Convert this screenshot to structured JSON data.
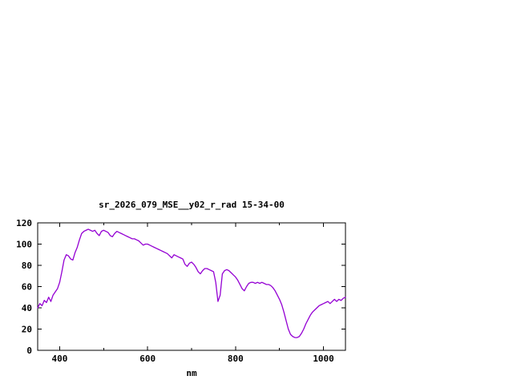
{
  "page": {
    "background": "#ffffff"
  },
  "chart_data": {
    "type": "line",
    "title": "sr_2026_079_MSE__y02_r_rad 15-34-00",
    "xlabel": "nm",
    "ylabel": "",
    "xlim": [
      350,
      1050
    ],
    "ylim": [
      0,
      120
    ],
    "xticks": [
      400,
      600,
      800,
      1000
    ],
    "xminor": [
      500,
      700,
      900
    ],
    "yticks": [
      0,
      20,
      40,
      60,
      80,
      100,
      120
    ],
    "grid": false,
    "legend": "none",
    "line_color": "#9400d3",
    "x": [
      350,
      355,
      360,
      365,
      370,
      375,
      380,
      385,
      390,
      395,
      400,
      405,
      410,
      415,
      420,
      425,
      430,
      435,
      440,
      445,
      450,
      455,
      460,
      465,
      470,
      475,
      480,
      485,
      490,
      495,
      500,
      505,
      510,
      515,
      520,
      525,
      530,
      535,
      540,
      545,
      550,
      555,
      560,
      565,
      570,
      575,
      580,
      585,
      590,
      595,
      600,
      605,
      610,
      615,
      620,
      625,
      630,
      635,
      640,
      645,
      650,
      655,
      660,
      665,
      670,
      675,
      680,
      685,
      690,
      695,
      700,
      705,
      710,
      715,
      720,
      725,
      730,
      735,
      740,
      745,
      750,
      755,
      760,
      765,
      770,
      775,
      780,
      785,
      790,
      795,
      800,
      805,
      810,
      815,
      820,
      825,
      830,
      835,
      840,
      845,
      850,
      855,
      860,
      865,
      870,
      875,
      880,
      885,
      890,
      895,
      900,
      905,
      910,
      915,
      920,
      925,
      930,
      935,
      940,
      945,
      950,
      955,
      960,
      965,
      970,
      975,
      980,
      985,
      990,
      995,
      1000,
      1005,
      1010,
      1015,
      1020,
      1025,
      1030,
      1035,
      1040,
      1045,
      1050
    ],
    "y": [
      40,
      44,
      42,
      47,
      45,
      50,
      46,
      52,
      55,
      58,
      64,
      74,
      85,
      90,
      89,
      86,
      85,
      92,
      97,
      104,
      110,
      112,
      113,
      114,
      113,
      112,
      113,
      110,
      108,
      112,
      113,
      112,
      111,
      108,
      107,
      110,
      112,
      111,
      110,
      109,
      108,
      107,
      106,
      105,
      105,
      104,
      103,
      101,
      99,
      100,
      100,
      99,
      98,
      97,
      96,
      95,
      94,
      93,
      92,
      91,
      89,
      87,
      90,
      89,
      88,
      87,
      86,
      81,
      79,
      82,
      83,
      81,
      78,
      74,
      72,
      75,
      77,
      77,
      76,
      75,
      74,
      64,
      46,
      52,
      72,
      75,
      76,
      75,
      73,
      71,
      69,
      66,
      62,
      58,
      56,
      60,
      63,
      64,
      64,
      63,
      64,
      63,
      64,
      63,
      62,
      62,
      61,
      59,
      56,
      52,
      48,
      43,
      36,
      28,
      20,
      15,
      13,
      12,
      12,
      13,
      16,
      20,
      25,
      29,
      33,
      36,
      38,
      40,
      42,
      43,
      44,
      45,
      46,
      44,
      46,
      48,
      46,
      48,
      47,
      49,
      50
    ]
  }
}
